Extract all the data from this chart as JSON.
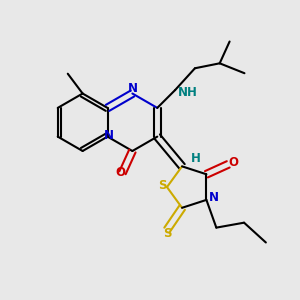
{
  "background_color": "#e8e8e8",
  "bond_color": "#000000",
  "n_color": "#0000cc",
  "o_color": "#cc0000",
  "s_color": "#ccaa00",
  "h_color": "#008080",
  "line_width": 1.5,
  "figsize": [
    3.0,
    3.0
  ],
  "dpi": 100,
  "xlim": [
    0,
    300
  ],
  "ylim": [
    0,
    300
  ]
}
